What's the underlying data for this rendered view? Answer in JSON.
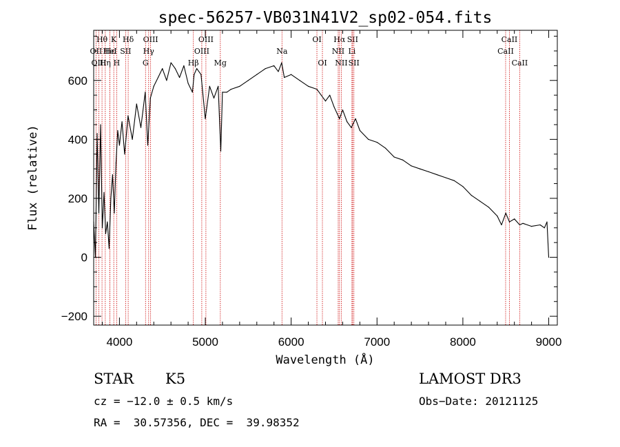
{
  "chart_data": {
    "type": "line",
    "title": "spec-56257-VB031N41V2_sp02-054.fits",
    "xlabel": "Wavelength (Å)",
    "ylabel": "Flux (relative)",
    "xlim": [
      3700,
      9100
    ],
    "ylim": [
      -230,
      770
    ],
    "xticks": [
      4000,
      5000,
      6000,
      7000,
      8000,
      9000
    ],
    "yticks": [
      -200,
      0,
      200,
      400,
      600
    ],
    "series": [
      {
        "name": "spectrum",
        "x": [
          3700,
          3720,
          3740,
          3760,
          3780,
          3800,
          3820,
          3840,
          3860,
          3880,
          3900,
          3920,
          3940,
          3960,
          3980,
          4000,
          4030,
          4060,
          4100,
          4150,
          4200,
          4250,
          4300,
          4330,
          4360,
          4400,
          4450,
          4500,
          4550,
          4600,
          4650,
          4700,
          4750,
          4800,
          4850,
          4870,
          4900,
          4950,
          5000,
          5050,
          5100,
          5150,
          5180,
          5200,
          5250,
          5300,
          5400,
          5500,
          5600,
          5700,
          5800,
          5850,
          5890,
          5920,
          6000,
          6100,
          6200,
          6300,
          6400,
          6450,
          6500,
          6563,
          6600,
          6650,
          6700,
          6750,
          6800,
          6900,
          7000,
          7100,
          7200,
          7300,
          7400,
          7500,
          7600,
          7700,
          7800,
          7900,
          8000,
          8100,
          8200,
          8300,
          8400,
          8450,
          8500,
          8542,
          8600,
          8662,
          8700,
          8800,
          8900,
          8950,
          8980,
          9000
        ],
        "y": [
          120,
          0,
          420,
          150,
          450,
          100,
          220,
          80,
          120,
          30,
          200,
          280,
          150,
          320,
          430,
          380,
          460,
          350,
          480,
          400,
          520,
          440,
          560,
          380,
          540,
          580,
          610,
          640,
          600,
          660,
          640,
          610,
          650,
          590,
          560,
          620,
          640,
          620,
          470,
          580,
          540,
          580,
          360,
          560,
          560,
          570,
          580,
          600,
          620,
          640,
          650,
          630,
          660,
          610,
          620,
          600,
          580,
          570,
          530,
          550,
          510,
          470,
          500,
          460,
          440,
          470,
          430,
          400,
          390,
          370,
          340,
          330,
          310,
          300,
          290,
          280,
          270,
          260,
          240,
          210,
          190,
          170,
          140,
          110,
          150,
          120,
          130,
          110,
          115,
          105,
          110,
          100,
          120,
          0
        ]
      }
    ],
    "line_markers": [
      {
        "label": "Hθ",
        "x": 3797,
        "row": 0
      },
      {
        "label": "OII",
        "x": 3727,
        "row": 1
      },
      {
        "label": "OIII",
        "x": 3760,
        "row": 2
      },
      {
        "label": "Hε",
        "x": 3889,
        "row": 1
      },
      {
        "label": "K",
        "x": 3934,
        "row": 0
      },
      {
        "label": "HeI",
        "x": 3889,
        "row": 1
      },
      {
        "label": "Hη",
        "x": 3835,
        "row": 2
      },
      {
        "label": "SII",
        "x": 4072,
        "row": 1
      },
      {
        "label": "H",
        "x": 3968,
        "row": 2
      },
      {
        "label": "Hδ",
        "x": 4102,
        "row": 0
      },
      {
        "label": "OIII",
        "x": 4363,
        "row": 0
      },
      {
        "label": "Hγ",
        "x": 4340,
        "row": 1
      },
      {
        "label": "G",
        "x": 4304,
        "row": 2
      },
      {
        "label": "Hβ",
        "x": 4861,
        "row": 2
      },
      {
        "label": "OIII",
        "x": 5007,
        "row": 0
      },
      {
        "label": "OIII",
        "x": 4959,
        "row": 1
      },
      {
        "label": "Mg",
        "x": 5175,
        "row": 2
      },
      {
        "label": "Na",
        "x": 5893,
        "row": 1
      },
      {
        "label": "OI",
        "x": 6300,
        "row": 0
      },
      {
        "label": "OI",
        "x": 6364,
        "row": 2
      },
      {
        "label": "Hα",
        "x": 6563,
        "row": 0
      },
      {
        "label": "SII",
        "x": 6716,
        "row": 0
      },
      {
        "label": "NII",
        "x": 6548,
        "row": 1
      },
      {
        "label": "Li",
        "x": 6708,
        "row": 1
      },
      {
        "label": "NII",
        "x": 6584,
        "row": 2
      },
      {
        "label": "SII",
        "x": 6731,
        "row": 2
      },
      {
        "label": "CaII",
        "x": 8542,
        "row": 0
      },
      {
        "label": "CaII",
        "x": 8498,
        "row": 1
      },
      {
        "label": "CaII",
        "x": 8662,
        "row": 2
      }
    ]
  },
  "footer": {
    "object_type": "STAR",
    "subclass": "K5",
    "survey": "LAMOST DR3",
    "cz": "cz = −12.0 ± 0.5 km/s",
    "obs_date": "Obs−Date: 20121125",
    "coords": "RA =  30.57356, DEC =  39.98352"
  }
}
